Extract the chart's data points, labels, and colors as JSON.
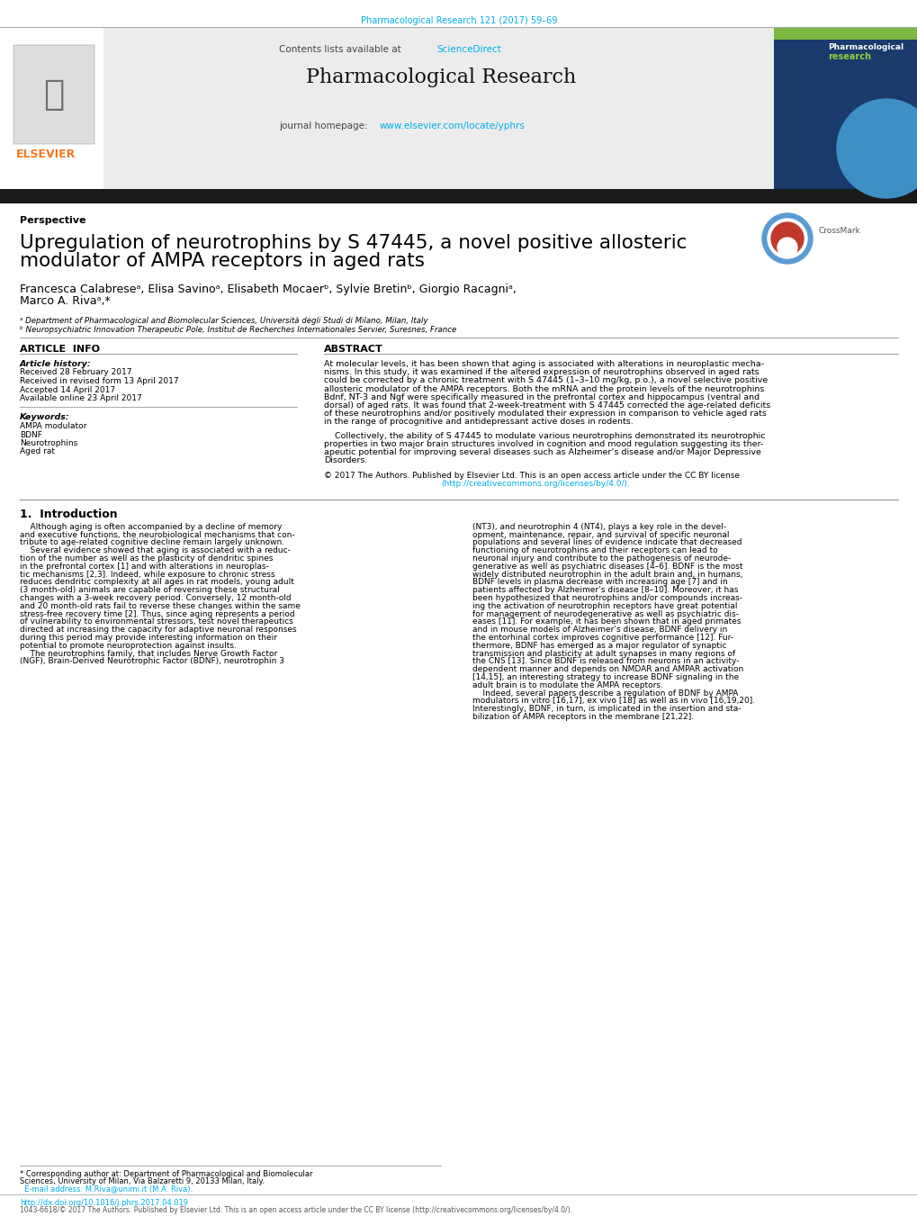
{
  "page_width": 10.2,
  "page_height": 13.51,
  "background_color": "#ffffff",
  "top_journal_ref": "Pharmacological Research 121 (2017) 59–69",
  "top_journal_ref_color": "#00aeef",
  "header_bg_color": "#e8e8e8",
  "journal_name": "Pharmacological Research",
  "science_direct_color": "#00aeef",
  "journal_url": "www.elsevier.com/locate/yphrs",
  "journal_url_color": "#00aeef",
  "dark_bar_color": "#1a1a1a",
  "section_label": "Perspective",
  "paper_title_line1": "Upregulation of neurotrophins by S 47445, a novel positive allosteric",
  "paper_title_line2": "modulator of AMPA receptors in aged rats",
  "authors_line1": "Francesca Calabreseᵃ, Elisa Savinoᵃ, Elisabeth Mocaerᵇ, Sylvie Bretinᵇ, Giorgio Racagniᵃ,",
  "authors_line2": "Marco A. Rivaᵃ,*",
  "affil_a": "ᵃ Department of Pharmacological and Biomolecular Sciences, Università degli Studi di Milano, Milan, Italy",
  "affil_b": "ᵇ Neuropsychiatric Innovation Therapeutic Pole, Institut de Recherches Internationales Servier, Suresnes, France",
  "article_info_header": "ARTICLE  INFO",
  "abstract_header": "ABSTRACT",
  "article_history_label": "Article history:",
  "received": "Received 28 February 2017",
  "received_revised": "Received in revised form 13 April 2017",
  "accepted": "Accepted 14 April 2017",
  "available": "Available online 23 April 2017",
  "keywords_label": "Keywords:",
  "keyword1": "AMPA modulator",
  "keyword2": "BDNF",
  "keyword3": "Neurotrophins",
  "keyword4": "Aged rat",
  "abstract_text": "At molecular levels, it has been shown that aging is associated with alterations in neuroplastic mecha-\nnisms. In this study, it was examined if the altered expression of neurotrophins observed in aged rats\ncould be corrected by a chronic treatment with S 47445 (1–3–10 mg/kg, p.o.), a novel selective positive\nallosteric modulator of the AMPA receptors. Both the mRNA and the protein levels of the neurotrophins\nBdnf, NT-3 and Ngf were specifically measured in the prefrontal cortex and hippocampus (ventral and\ndorsal) of aged rats. It was found that 2-week-treatment with S 47445 corrected the age-related deficits\nof these neurotrophins and/or positively modulated their expression in comparison to vehicle aged rats\nin the range of procognitive and antidepressant active doses in rodents.",
  "abstract_para2": "    Collectively, the ability of S 47445 to modulate various neurotrophins demonstrated its neurotrophic\nproperties in two major brain structures involved in cognition and mood regulation suggesting its ther-\napeutic potential for improving several diseases such as Alzheimer’s disease and/or Major Depressive\nDisorders.",
  "abstract_copy1": "© 2017 The Authors. Published by Elsevier Ltd. This is an open access article under the CC BY license",
  "abstract_copy2": "(http://creativecommons.org/licenses/by/4.0/).",
  "intro_header": "1.  Introduction",
  "intro_col1_lines": [
    "    Although aging is often accompanied by a decline of memory",
    "and executive functions, the neurobiological mechanisms that con-",
    "tribute to age-related cognitive decline remain largely unknown.",
    "    Several evidence showed that aging is associated with a reduc-",
    "tion of the number as well as the plasticity of dendritic spines",
    "in the prefrontal cortex [1] and with alterations in neuroplas-",
    "tic mechanisms [2,3]. Indeed, while exposure to chronic stress",
    "reduces dendritic complexity at all ages in rat models, young adult",
    "(3 month-old) animals are capable of reversing these structural",
    "changes with a 3-week recovery period. Conversely, 12 month-old",
    "and 20 month-old rats fail to reverse these changes within the same",
    "stress-free recovery time [2]. Thus, since aging represents a period",
    "of vulnerability to environmental stressors, test novel therapeutics",
    "directed at increasing the capacity for adaptive neuronal responses",
    "during this period may provide interesting information on their",
    "potential to promote neuroprotection against insults.",
    "    The neurotrophins family, that includes Nerve Growth Factor",
    "(NGF), Brain-Derived Neurotrophic Factor (BDNF), neurotrophin 3"
  ],
  "intro_col2_lines": [
    "(NT3), and neurotrophin 4 (NT4), plays a key role in the devel-",
    "opment, maintenance, repair, and survival of specific neuronal",
    "populations and several lines of evidence indicate that decreased",
    "functioning of neurotrophins and their receptors can lead to",
    "neuronal injury and contribute to the pathogenesis of neurode-",
    "generative as well as psychiatric diseases [4–6]. BDNF is the most",
    "widely distributed neurotrophin in the adult brain and, in humans,",
    "BDNF levels in plasma decrease with increasing age [7] and in",
    "patients affected by Alzheimer’s disease [8–10]. Moreover, it has",
    "been hypothesized that neurotrophins and/or compounds increas-",
    "ing the activation of neurotrophin receptors have great potential",
    "for management of neurodegenerative as well as psychiatric dis-",
    "eases [11]. For example, it has been shown that in aged primates",
    "and in mouse models of Alzheimer’s disease, BDNF delivery in",
    "the entorhinal cortex improves cognitive performance [12]. Fur-",
    "thermore, BDNF has emerged as a major regulator of synaptic",
    "transmission and plasticity at adult synapses in many regions of",
    "the CNS [13]. Since BDNF is released from neurons in an activity-",
    "dependent manner and depends on NMDAR and AMPAR activation",
    "[14,15], an interesting strategy to increase BDNF signaling in the",
    "adult brain is to modulate the AMPA receptors.",
    "    Indeed, several papers describe a regulation of BDNF by AMPA",
    "modulators in vitro [16,17], ex vivo [18] as well as in vivo [16,19,20].",
    "Interestingly, BDNF, in turn, is implicated in the insertion and sta-",
    "bilization of AMPA receptors in the membrane [21,22]."
  ],
  "footnote_line1": "* Corresponding author at: Department of Pharmacological and Biomolecular",
  "footnote_line2": "Sciences, University of Milan, Via Balzaretti 9, 20133 Milan, Italy.",
  "footnote_line3": "  E-mail address: M.Riva@unimi.it (M.A. Riva).",
  "doi_text": "http://dx.doi.org/10.1016/j.phrs.2017.04.019",
  "issn_text": "1043-6618/© 2017 The Authors. Published by Elsevier Ltd. This is an open access article under the CC BY license (http://creativecommons.org/licenses/by/4.0/).",
  "elsevier_color": "#f47920",
  "link_color": "#00aeef",
  "text_color": "#000000",
  "gray_color": "#555555"
}
